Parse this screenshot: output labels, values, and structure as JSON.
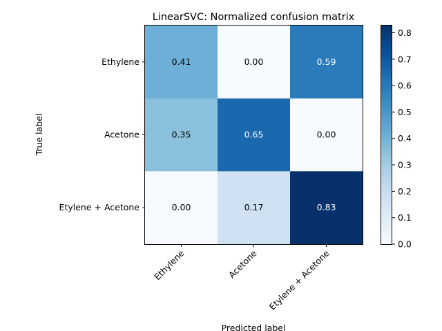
{
  "chart_data": {
    "type": "heatmap",
    "title": "LinearSVC: Normalized confusion matrix",
    "xlabel": "Predicted label",
    "ylabel": "True label",
    "x_categories": [
      "Ethylene",
      "Acetone",
      "Etylene + Acetone"
    ],
    "y_categories": [
      "Ethylene",
      "Acetone",
      "Etylene + Acetone"
    ],
    "values": [
      [
        0.41,
        0.0,
        0.59
      ],
      [
        0.35,
        0.65,
        0.0
      ],
      [
        0.0,
        0.17,
        0.83
      ]
    ],
    "value_labels": [
      [
        "0.41",
        "0.00",
        "0.59"
      ],
      [
        "0.35",
        "0.65",
        "0.00"
      ],
      [
        "0.00",
        "0.17",
        "0.83"
      ]
    ],
    "colormap": "Blues",
    "colorbar": {
      "range": [
        0.0,
        0.83
      ],
      "ticks": [
        0.0,
        0.1,
        0.2,
        0.3,
        0.4,
        0.5,
        0.6,
        0.7,
        0.8
      ],
      "tick_labels": [
        "0.0",
        "0.1",
        "0.2",
        "0.3",
        "0.4",
        "0.5",
        "0.6",
        "0.7",
        "0.8"
      ]
    },
    "grid": false
  }
}
